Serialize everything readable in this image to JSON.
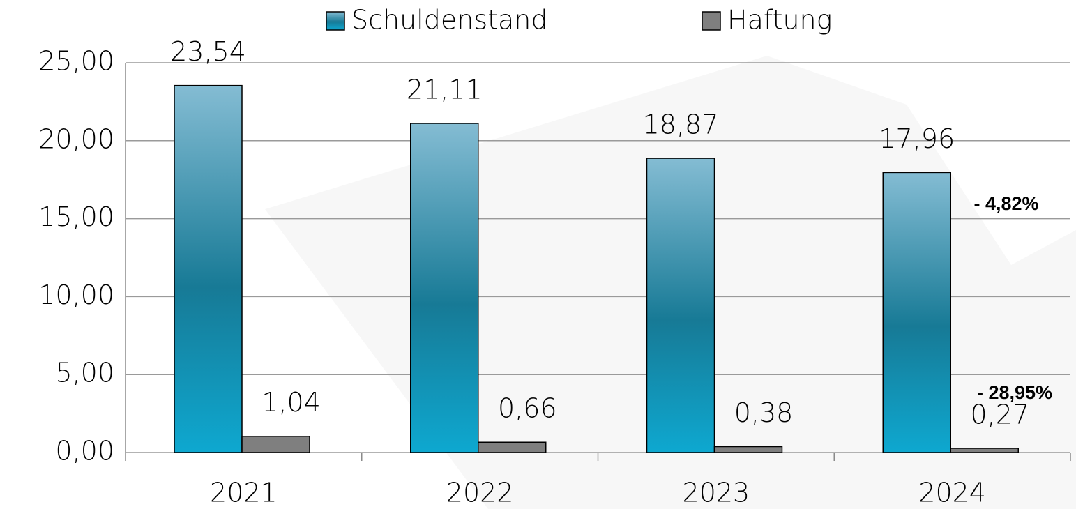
{
  "chart_data": {
    "type": "bar",
    "categories": [
      "2021",
      "2022",
      "2023",
      "2024"
    ],
    "series": [
      {
        "name": "Schuldenstand",
        "color": "#177a96",
        "values": [
          23.54,
          21.11,
          18.87,
          17.96
        ],
        "value_labels": [
          "23,54",
          "21,11",
          "18,87",
          "17,96"
        ]
      },
      {
        "name": "Haftung",
        "color": "#7f7f7f",
        "values": [
          1.04,
          0.66,
          0.38,
          0.27
        ],
        "value_labels": [
          "1,04",
          "0,66",
          "0,38",
          "0,27"
        ]
      }
    ],
    "ylim": [
      0,
      25
    ],
    "yticks": [
      {
        "value": 0,
        "label": "0,00"
      },
      {
        "value": 5,
        "label": "5,00"
      },
      {
        "value": 10,
        "label": "10,00"
      },
      {
        "value": 15,
        "label": "15,00"
      },
      {
        "value": 20,
        "label": "20,00"
      },
      {
        "value": 25,
        "label": "25,00"
      }
    ],
    "grid": true,
    "legend": "top",
    "annotations": [
      "- 4,82%",
      "- 28,95%"
    ]
  }
}
